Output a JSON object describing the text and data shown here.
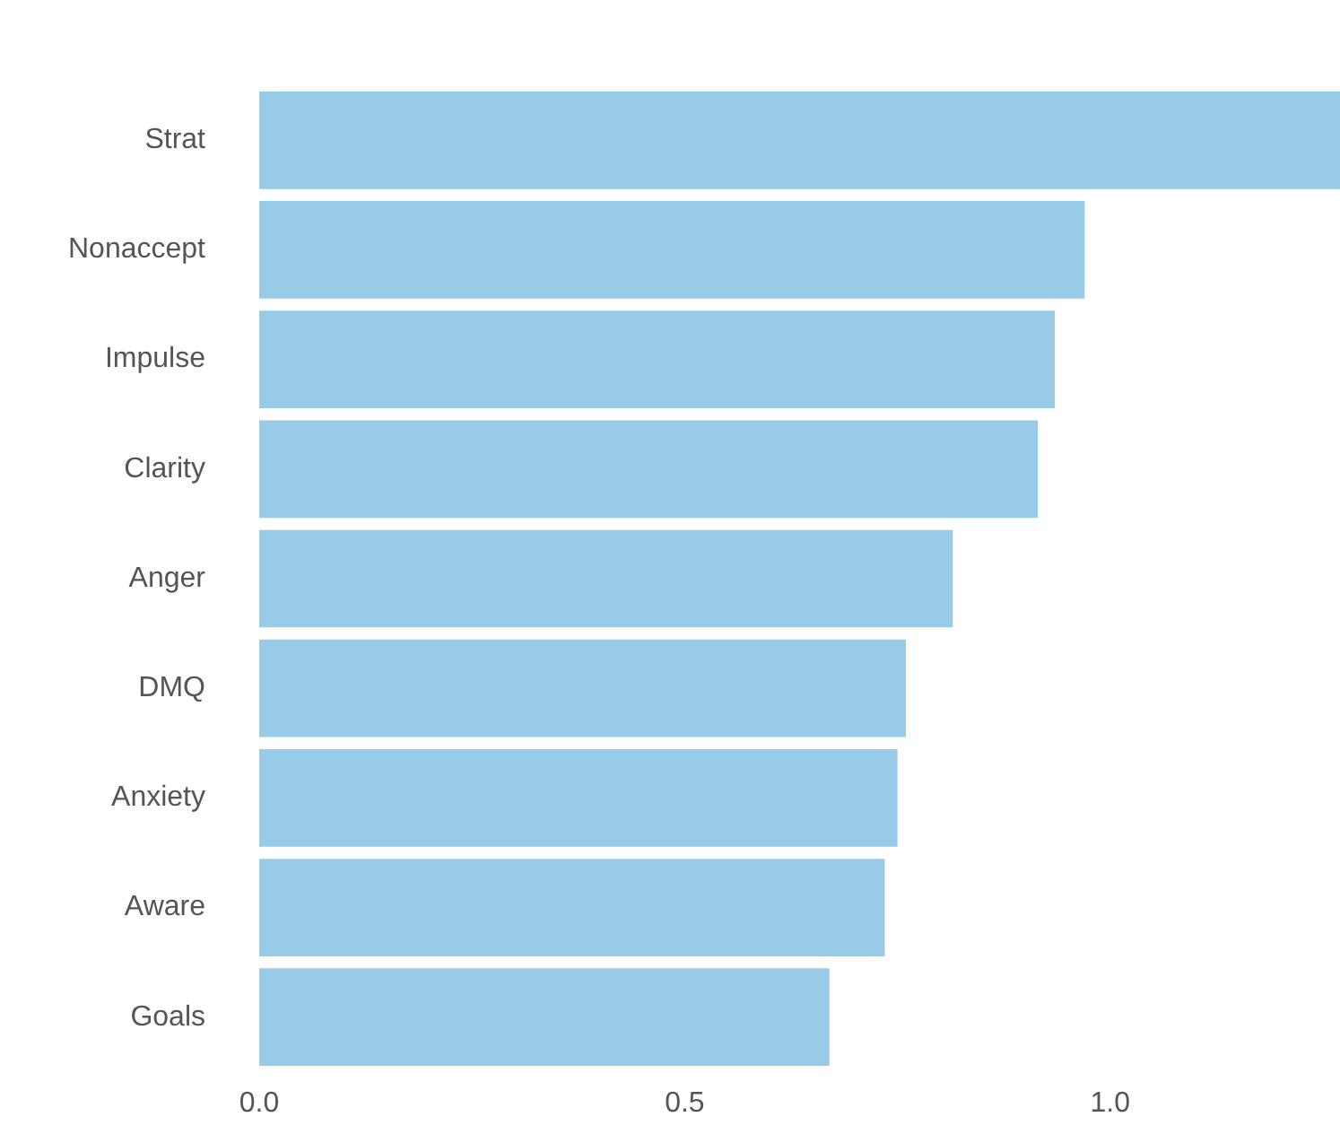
{
  "chart_data": {
    "type": "bar",
    "orientation": "horizontal",
    "categories": [
      "Strat",
      "Nonaccept",
      "Impulse",
      "Clarity",
      "Anger",
      "DMQ",
      "Anxiety",
      "Aware",
      "Goals"
    ],
    "values": [
      1.27,
      0.97,
      0.935,
      0.915,
      0.815,
      0.76,
      0.75,
      0.735,
      0.67
    ],
    "color": "#97cbe7",
    "xlim": [
      0,
      1.27
    ],
    "xticks": [
      {
        "value": 0,
        "label": "0.0"
      },
      {
        "value": 0.5,
        "label": "0.5"
      },
      {
        "value": 1,
        "label": "1.0"
      }
    ],
    "grid": false,
    "legend": false
  }
}
